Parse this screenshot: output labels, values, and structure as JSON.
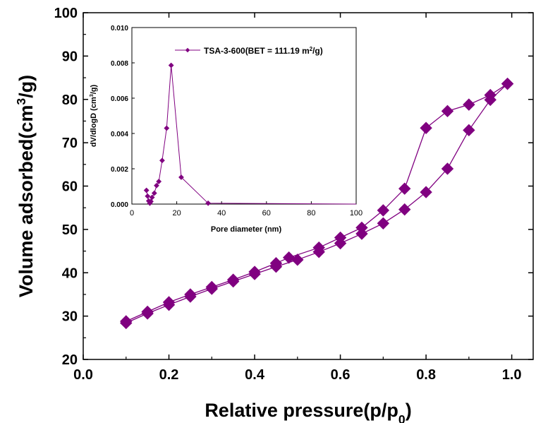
{
  "chart_data": [
    {
      "type": "line",
      "role": "main",
      "xlabel": "Relative pressure(p/p0)",
      "ylabel": "Volume adsorbed(cm3/g)",
      "xlim": [
        0.0,
        1.05
      ],
      "ylim": [
        20,
        100
      ],
      "xticks": [
        "0.0",
        "0.2",
        "0.4",
        "0.6",
        "0.8",
        "1.0"
      ],
      "xtick_values": [
        0.0,
        0.2,
        0.4,
        0.6,
        0.8,
        1.0
      ],
      "yticks": [
        "20",
        "30",
        "40",
        "50",
        "60",
        "70",
        "80",
        "90",
        "100"
      ],
      "ytick_values": [
        20,
        30,
        40,
        50,
        60,
        70,
        80,
        90,
        100
      ],
      "grid": false,
      "color": "#800080",
      "marker": "diamond",
      "series": [
        {
          "role": "adsorption",
          "x": [
            0.1,
            0.15,
            0.2,
            0.25,
            0.3,
            0.35,
            0.4,
            0.45,
            0.5,
            0.55,
            0.6,
            0.65,
            0.7,
            0.75,
            0.8,
            0.85,
            0.9,
            0.95,
            0.99
          ],
          "y": [
            28.4,
            30.6,
            32.6,
            34.5,
            36.3,
            38.0,
            39.7,
            41.4,
            43.0,
            44.8,
            46.8,
            49.0,
            51.4,
            54.6,
            58.6,
            64.0,
            72.9,
            79.9,
            83.6
          ]
        },
        {
          "role": "desorption",
          "x": [
            0.99,
            0.95,
            0.9,
            0.85,
            0.8,
            0.75,
            0.7,
            0.65,
            0.6,
            0.55,
            0.48,
            0.45,
            0.4,
            0.35,
            0.3,
            0.25,
            0.2,
            0.15,
            0.1
          ],
          "y": [
            83.6,
            81.0,
            78.8,
            77.3,
            73.4,
            59.4,
            54.4,
            50.4,
            48.1,
            45.8,
            43.5,
            42.2,
            40.2,
            38.4,
            36.7,
            35.0,
            33.2,
            31.0,
            28.8
          ]
        }
      ]
    },
    {
      "type": "line",
      "role": "inset",
      "xlabel": "Pore diameter (nm)",
      "ylabel": "dV/dlogD (cm3/g)",
      "xlim": [
        0,
        100
      ],
      "ylim": [
        0,
        0.01
      ],
      "xticks": [
        "0",
        "20",
        "40",
        "60",
        "80",
        "100"
      ],
      "xtick_values": [
        0,
        20,
        40,
        60,
        80,
        100
      ],
      "yticks": [
        "0.000",
        "0.002",
        "0.004",
        "0.006",
        "0.008",
        "0.010"
      ],
      "ytick_values": [
        0.0,
        0.002,
        0.004,
        0.006,
        0.008,
        0.01
      ],
      "grid": false,
      "legend_position": "top-right",
      "color": "#800080",
      "marker": "diamond",
      "series": [
        {
          "name": "TSA-3-600(BET = 111.19 m2/g)",
          "x": [
            6.5,
            7.0,
            7.5,
            8.0,
            8.5,
            9.0,
            10.0,
            11.0,
            12.0,
            13.5,
            15.5,
            17.5,
            22.0,
            34.0,
            100
          ],
          "y": [
            0.00078,
            0.00045,
            0.00018,
            5e-05,
            0.00015,
            0.00038,
            0.00062,
            0.00105,
            0.00128,
            0.00247,
            0.0043,
            0.00786,
            0.00152,
            5e-05,
            0.0
          ]
        }
      ]
    }
  ]
}
